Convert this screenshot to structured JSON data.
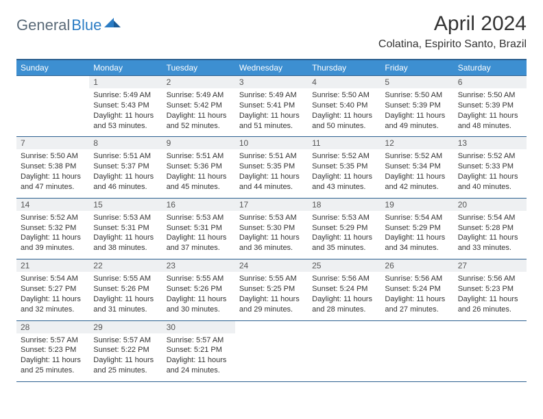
{
  "logo": {
    "part1": "General",
    "part2": "Blue"
  },
  "title": "April 2024",
  "location": "Colatina, Espirito Santo, Brazil",
  "colors": {
    "header_bg": "#3d8fd1",
    "header_border": "#2b5f8f",
    "daynum_bg": "#eef0f2",
    "text": "#333333",
    "logo_gray": "#5a6a78",
    "logo_blue": "#2b7cc4"
  },
  "day_headers": [
    "Sunday",
    "Monday",
    "Tuesday",
    "Wednesday",
    "Thursday",
    "Friday",
    "Saturday"
  ],
  "weeks": [
    [
      null,
      {
        "n": "1",
        "sr": "5:49 AM",
        "ss": "5:43 PM",
        "dl": "11 hours and 53 minutes."
      },
      {
        "n": "2",
        "sr": "5:49 AM",
        "ss": "5:42 PM",
        "dl": "11 hours and 52 minutes."
      },
      {
        "n": "3",
        "sr": "5:49 AM",
        "ss": "5:41 PM",
        "dl": "11 hours and 51 minutes."
      },
      {
        "n": "4",
        "sr": "5:50 AM",
        "ss": "5:40 PM",
        "dl": "11 hours and 50 minutes."
      },
      {
        "n": "5",
        "sr": "5:50 AM",
        "ss": "5:39 PM",
        "dl": "11 hours and 49 minutes."
      },
      {
        "n": "6",
        "sr": "5:50 AM",
        "ss": "5:39 PM",
        "dl": "11 hours and 48 minutes."
      }
    ],
    [
      {
        "n": "7",
        "sr": "5:50 AM",
        "ss": "5:38 PM",
        "dl": "11 hours and 47 minutes."
      },
      {
        "n": "8",
        "sr": "5:51 AM",
        "ss": "5:37 PM",
        "dl": "11 hours and 46 minutes."
      },
      {
        "n": "9",
        "sr": "5:51 AM",
        "ss": "5:36 PM",
        "dl": "11 hours and 45 minutes."
      },
      {
        "n": "10",
        "sr": "5:51 AM",
        "ss": "5:35 PM",
        "dl": "11 hours and 44 minutes."
      },
      {
        "n": "11",
        "sr": "5:52 AM",
        "ss": "5:35 PM",
        "dl": "11 hours and 43 minutes."
      },
      {
        "n": "12",
        "sr": "5:52 AM",
        "ss": "5:34 PM",
        "dl": "11 hours and 42 minutes."
      },
      {
        "n": "13",
        "sr": "5:52 AM",
        "ss": "5:33 PM",
        "dl": "11 hours and 40 minutes."
      }
    ],
    [
      {
        "n": "14",
        "sr": "5:52 AM",
        "ss": "5:32 PM",
        "dl": "11 hours and 39 minutes."
      },
      {
        "n": "15",
        "sr": "5:53 AM",
        "ss": "5:31 PM",
        "dl": "11 hours and 38 minutes."
      },
      {
        "n": "16",
        "sr": "5:53 AM",
        "ss": "5:31 PM",
        "dl": "11 hours and 37 minutes."
      },
      {
        "n": "17",
        "sr": "5:53 AM",
        "ss": "5:30 PM",
        "dl": "11 hours and 36 minutes."
      },
      {
        "n": "18",
        "sr": "5:53 AM",
        "ss": "5:29 PM",
        "dl": "11 hours and 35 minutes."
      },
      {
        "n": "19",
        "sr": "5:54 AM",
        "ss": "5:29 PM",
        "dl": "11 hours and 34 minutes."
      },
      {
        "n": "20",
        "sr": "5:54 AM",
        "ss": "5:28 PM",
        "dl": "11 hours and 33 minutes."
      }
    ],
    [
      {
        "n": "21",
        "sr": "5:54 AM",
        "ss": "5:27 PM",
        "dl": "11 hours and 32 minutes."
      },
      {
        "n": "22",
        "sr": "5:55 AM",
        "ss": "5:26 PM",
        "dl": "11 hours and 31 minutes."
      },
      {
        "n": "23",
        "sr": "5:55 AM",
        "ss": "5:26 PM",
        "dl": "11 hours and 30 minutes."
      },
      {
        "n": "24",
        "sr": "5:55 AM",
        "ss": "5:25 PM",
        "dl": "11 hours and 29 minutes."
      },
      {
        "n": "25",
        "sr": "5:56 AM",
        "ss": "5:24 PM",
        "dl": "11 hours and 28 minutes."
      },
      {
        "n": "26",
        "sr": "5:56 AM",
        "ss": "5:24 PM",
        "dl": "11 hours and 27 minutes."
      },
      {
        "n": "27",
        "sr": "5:56 AM",
        "ss": "5:23 PM",
        "dl": "11 hours and 26 minutes."
      }
    ],
    [
      {
        "n": "28",
        "sr": "5:57 AM",
        "ss": "5:23 PM",
        "dl": "11 hours and 25 minutes."
      },
      {
        "n": "29",
        "sr": "5:57 AM",
        "ss": "5:22 PM",
        "dl": "11 hours and 25 minutes."
      },
      {
        "n": "30",
        "sr": "5:57 AM",
        "ss": "5:21 PM",
        "dl": "11 hours and 24 minutes."
      },
      null,
      null,
      null,
      null
    ]
  ],
  "labels": {
    "sunrise": "Sunrise:",
    "sunset": "Sunset:",
    "daylight": "Daylight:"
  }
}
